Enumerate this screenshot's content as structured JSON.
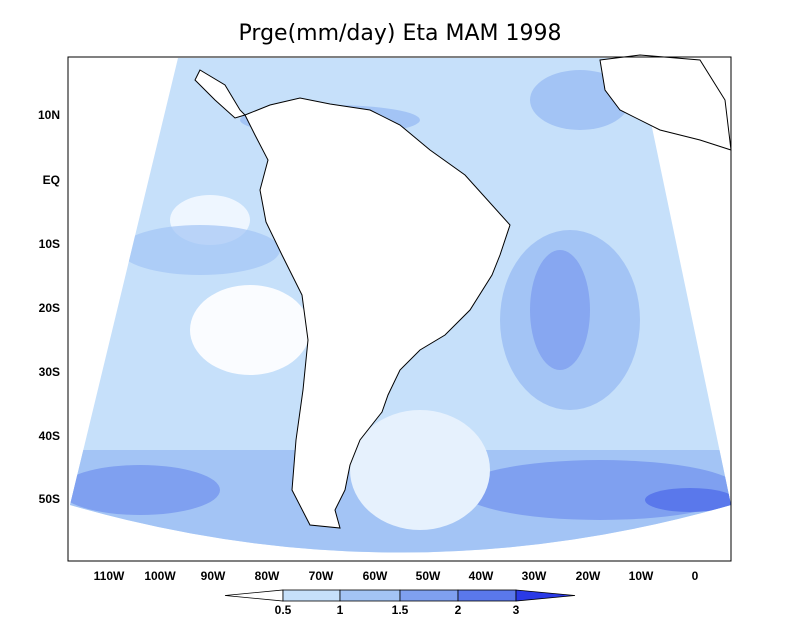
{
  "title": "Prge(mm/day) Eta MAM 1998",
  "lat_labels": [
    "10N",
    "EQ",
    "10S",
    "20S",
    "30S",
    "40S",
    "50S"
  ],
  "lon_labels": [
    "110W",
    "100W",
    "90W",
    "80W",
    "70W",
    "60W",
    "50W",
    "40W",
    "30W",
    "20W",
    "10W",
    "0"
  ],
  "colorbar": {
    "labels": [
      0.5,
      1,
      1.5,
      2,
      3
    ]
  }
}
